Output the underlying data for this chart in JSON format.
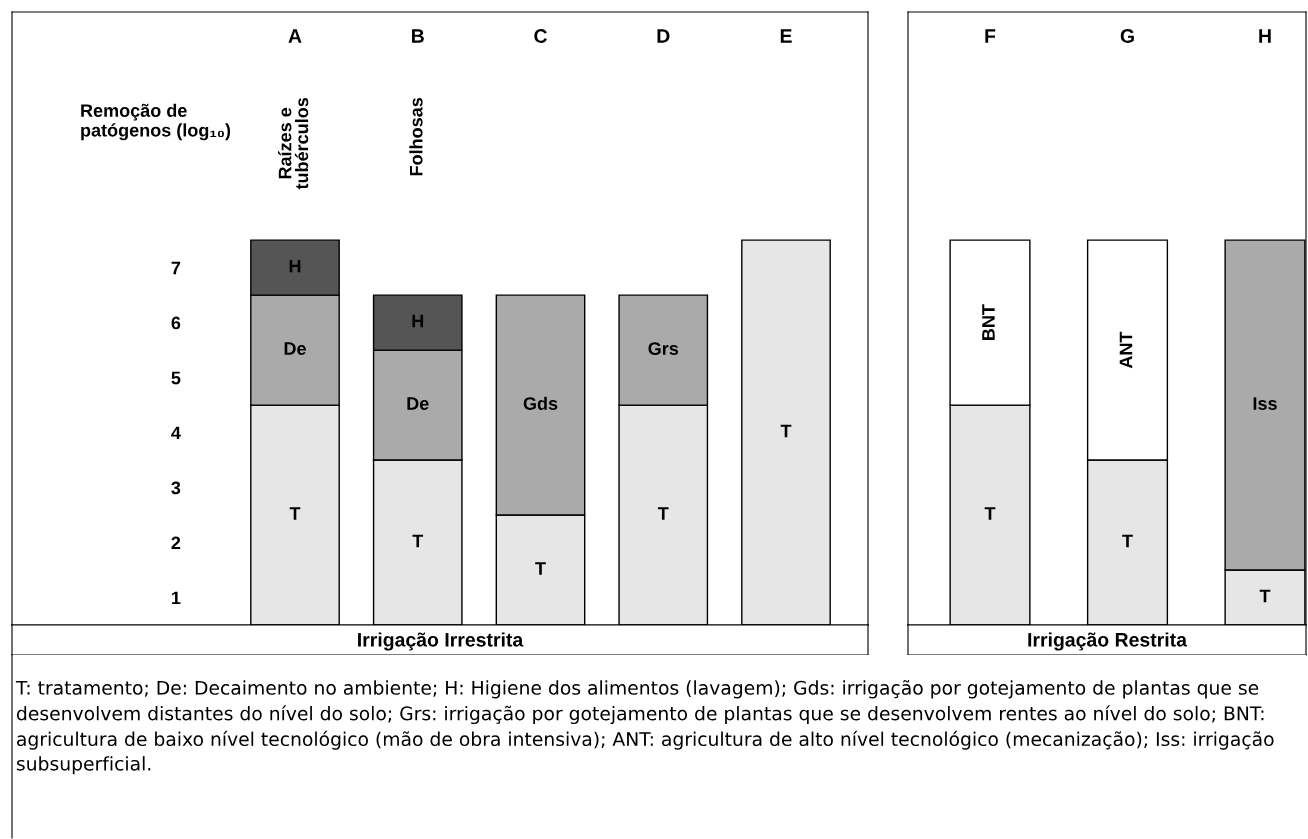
{
  "chart_data": [
    {
      "type": "bar",
      "stacked": true,
      "categories": [
        "A",
        "B",
        "C",
        "D",
        "E"
      ],
      "ylabel": "Remoção de\npatógenos (log₁₀)",
      "xlabel": "Irrigação Irrestrita",
      "ylim": [
        0,
        11.15
      ],
      "yticks": [
        {
          "value": 0.5,
          "label": "1"
        },
        {
          "value": 1.5,
          "label": "2"
        },
        {
          "value": 2.5,
          "label": "3"
        },
        {
          "value": 3.5,
          "label": "4"
        },
        {
          "value": 4.5,
          "label": "5"
        },
        {
          "value": 5.5,
          "label": "6"
        },
        {
          "value": 6.5,
          "label": "7"
        }
      ],
      "series": [
        {
          "name": "T",
          "color": "#e6e6e6",
          "values": [
            4,
            3,
            2,
            4,
            7
          ]
        },
        {
          "name": "De",
          "color": "#aaaaaa",
          "values": [
            2,
            2,
            null,
            null,
            null
          ]
        },
        {
          "name": "H",
          "color": "#555555",
          "values": [
            1,
            1,
            null,
            null,
            null
          ]
        },
        {
          "name": "Gds",
          "color": "#aaaaaa",
          "values": [
            null,
            null,
            4,
            null,
            null
          ]
        },
        {
          "name": "Grs",
          "color": "#aaaaaa",
          "values": [
            null,
            null,
            null,
            2,
            null
          ]
        }
      ],
      "annotations": [
        "Raízes e\ntubérculos",
        "Folhosas",
        "T: tratamento; De: Decaimento no ambiente; H: Higiene dos alimentos (lavagem); Gds: irrigação por gotejamento de plantas que se desenvolvem distantes do nível do solo; Grs: irrigação por gotejamento de plantas que se desenvolvem rentes ao nível do solo; BNT: agricultura de baixo nível tecnológico (mão de obra intensiva); ANT: agricultura de alto nível tecnológico (mecanização); Iss: irrigação subsuperficial."
      ]
    },
    {
      "type": "bar",
      "stacked": true,
      "categories": [
        "F",
        "G",
        "H"
      ],
      "xlabel": "Irrigação Restrita",
      "ylim": [
        0,
        11.15
      ],
      "tick_labels": "x",
      "series": [
        {
          "name": "T",
          "color": "#e6e6e6",
          "values": [
            4,
            3,
            1
          ]
        },
        {
          "name": "BNT",
          "color": "#ffffff",
          "values": [
            3,
            null,
            null
          ]
        },
        {
          "name": "ANT",
          "color": "#ffffff",
          "values": [
            null,
            4,
            null
          ]
        },
        {
          "name": "Iss",
          "color": "#aaaaaa",
          "values": [
            null,
            null,
            6
          ]
        }
      ]
    }
  ]
}
